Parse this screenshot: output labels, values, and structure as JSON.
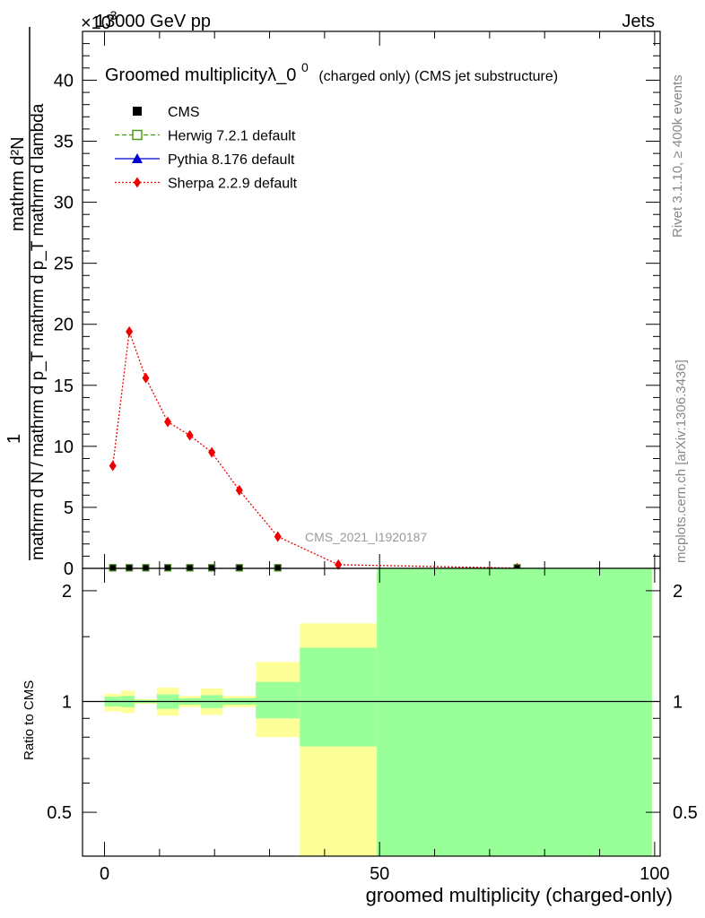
{
  "header": {
    "energy_label": "13000 GeV pp",
    "exponent_label": "×10",
    "exponent_power": "-3",
    "category_label": "Jets"
  },
  "side_labels": {
    "rivet": "Rivet 3.1.10, ≥ 400k events",
    "source": "mcplots.cern.ch [arXiv:1306.3436]"
  },
  "chart_data": {
    "type": "line",
    "title_main": "Groomed multiplicityλ_0",
    "title_sup": "0",
    "title_sub": "(charged only) (CMS jet substructure)",
    "watermark": "CMS_2021_I1920187",
    "xlabel": "groomed multiplicity (charged-only)",
    "ylabel_top": {
      "numerator": "mathrm d²N",
      "prefix": "1",
      "denominator": "mathrm d N / mathrm d p_T mathrm d p_T mathrm d lambda"
    },
    "ylabel_ratio": "Ratio to CMS",
    "xlim": [
      -4,
      101
    ],
    "ylim": [
      0,
      44
    ],
    "ratio_ylim": [
      0.38,
      2.3
    ],
    "x_ticks": [
      0,
      50,
      100
    ],
    "x_tick_labels": [
      "0",
      "50",
      "100"
    ],
    "y_ticks": [
      0,
      5,
      10,
      15,
      20,
      25,
      30,
      35,
      40
    ],
    "y_tick_labels": [
      "0",
      "5",
      "10",
      "15",
      "20",
      "25",
      "30",
      "35",
      "40"
    ],
    "ratio_ticks": [
      0.5,
      1,
      2
    ],
    "ratio_tick_labels": [
      "0.5",
      "1",
      "2"
    ],
    "legend": [
      {
        "name": "CMS",
        "marker": "square-filled",
        "color": "#000000"
      },
      {
        "name": "Herwig 7.2.1 default",
        "marker": "square-open",
        "color": "#4d9a1a",
        "dash": "5,3"
      },
      {
        "name": "Pythia 8.176 default",
        "marker": "triangle",
        "color": "#0000cc",
        "dash": ""
      },
      {
        "name": "Sherpa 2.2.9 default",
        "marker": "diamond",
        "color": "#ee0000",
        "dash": "2,2"
      }
    ],
    "series": [
      {
        "name": "CMS",
        "x": [
          1.5,
          4.5,
          7.5,
          11.5,
          15.5,
          19.5,
          24.5,
          31.5,
          42.5,
          75.0
        ],
        "y": [
          0.05,
          0.05,
          0.05,
          0.05,
          0.05,
          0.05,
          0.05,
          0.05,
          0.0,
          0.05
        ]
      },
      {
        "name": "Sherpa 2.2.9 default",
        "x": [
          1.5,
          4.5,
          7.5,
          11.5,
          15.5,
          19.5,
          24.5,
          31.5,
          42.5,
          75.0
        ],
        "y": [
          8.4,
          19.4,
          15.6,
          12.0,
          10.9,
          9.5,
          6.4,
          2.6,
          0.3,
          0.02
        ]
      }
    ],
    "ratio_bands": [
      {
        "x0": 0,
        "x1": 3,
        "yellow": [
          0.94,
          1.05
        ],
        "green": [
          0.97,
          1.03
        ]
      },
      {
        "x0": 3,
        "x1": 5.5,
        "yellow": [
          0.93,
          1.07
        ],
        "green": [
          0.965,
          1.035
        ]
      },
      {
        "x0": 5.5,
        "x1": 9.5,
        "yellow": [
          0.985,
          1.015
        ],
        "green": [
          0.99,
          1.01
        ]
      },
      {
        "x0": 9.5,
        "x1": 13.5,
        "yellow": [
          0.915,
          1.09
        ],
        "green": [
          0.955,
          1.045
        ]
      },
      {
        "x0": 13.5,
        "x1": 17.5,
        "yellow": [
          0.965,
          1.035
        ],
        "green": [
          0.98,
          1.02
        ]
      },
      {
        "x0": 17.5,
        "x1": 21.5,
        "yellow": [
          0.92,
          1.085
        ],
        "green": [
          0.96,
          1.04
        ]
      },
      {
        "x0": 21.5,
        "x1": 27.5,
        "yellow": [
          0.965,
          1.035
        ],
        "green": [
          0.98,
          1.02
        ]
      },
      {
        "x0": 27.5,
        "x1": 35.5,
        "yellow": [
          0.8,
          1.28
        ],
        "green": [
          0.9,
          1.13
        ]
      },
      {
        "x0": 35.5,
        "x1": 49.5,
        "yellow": [
          0.37,
          1.63
        ],
        "green": [
          0.755,
          1.4
        ]
      },
      {
        "x0": 49.5,
        "x1": 99.5,
        "yellow": [
          0.37,
          2.35
        ],
        "green": [
          0.37,
          2.35
        ]
      }
    ]
  }
}
